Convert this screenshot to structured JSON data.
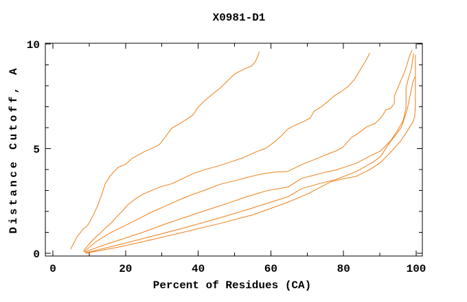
{
  "window": {
    "title": "X0981-D1"
  },
  "colors": {
    "background": "#ffffff",
    "axis": "#000000",
    "text": "#000000",
    "curve": "#ed7d14"
  },
  "chart_data": {
    "type": "line",
    "title": "X0981-D1",
    "xlabel": "Percent of Residues (CA)",
    "ylabel": "Distance Cutoff, A",
    "xlim": [
      0,
      100
    ],
    "ylim": [
      0,
      10
    ],
    "x_major_ticks": [
      0,
      20,
      40,
      60,
      80,
      100
    ],
    "x_minor_ticks": [
      10,
      30,
      50,
      70,
      90
    ],
    "y_major_ticks": [
      0,
      5,
      10
    ],
    "y_minor_ticks": [
      1,
      2,
      3,
      4,
      6,
      7,
      8,
      9
    ],
    "grid": false,
    "legend": "none",
    "line_color": "#ed7d14",
    "series": [
      {
        "name": "curve-1",
        "points": [
          [
            4.9,
            0.2
          ],
          [
            6.7,
            0.8
          ],
          [
            8.2,
            1.13
          ],
          [
            9.7,
            1.36
          ],
          [
            11,
            1.78
          ],
          [
            12.3,
            2.27
          ],
          [
            13.5,
            2.83
          ],
          [
            14.4,
            3.32
          ],
          [
            15.7,
            3.68
          ],
          [
            16.9,
            3.91
          ],
          [
            18,
            4.11
          ],
          [
            19.9,
            4.24
          ],
          [
            21.8,
            4.53
          ],
          [
            23.6,
            4.7
          ],
          [
            25.2,
            4.86
          ],
          [
            27.4,
            5.02
          ],
          [
            29.3,
            5.19
          ],
          [
            30.8,
            5.52
          ],
          [
            32.7,
            5.97
          ],
          [
            35,
            6.2
          ],
          [
            36.8,
            6.4
          ],
          [
            38.5,
            6.6
          ],
          [
            39.9,
            6.96
          ],
          [
            41.7,
            7.28
          ],
          [
            44,
            7.61
          ],
          [
            45.9,
            7.87
          ],
          [
            48.2,
            8.26
          ],
          [
            50,
            8.56
          ],
          [
            52.5,
            8.79
          ],
          [
            54.7,
            8.95
          ],
          [
            55.7,
            9.15
          ],
          [
            56.4,
            9.41
          ],
          [
            56.8,
            9.64
          ]
        ]
      },
      {
        "name": "curve-2",
        "points": [
          [
            8.4,
            0.11
          ],
          [
            11,
            0.64
          ],
          [
            13.1,
            0.97
          ],
          [
            14.4,
            1.19
          ],
          [
            16.1,
            1.46
          ],
          [
            17.6,
            1.75
          ],
          [
            19.1,
            2.01
          ],
          [
            20.6,
            2.31
          ],
          [
            22.5,
            2.57
          ],
          [
            24.6,
            2.8
          ],
          [
            27,
            2.99
          ],
          [
            29.9,
            3.19
          ],
          [
            32.7,
            3.32
          ],
          [
            35.5,
            3.55
          ],
          [
            38.7,
            3.81
          ],
          [
            42.1,
            4.01
          ],
          [
            45.5,
            4.17
          ],
          [
            49.1,
            4.37
          ],
          [
            52.5,
            4.57
          ],
          [
            55.7,
            4.83
          ],
          [
            58.7,
            5.02
          ],
          [
            61,
            5.32
          ],
          [
            62.9,
            5.61
          ],
          [
            64.7,
            5.94
          ],
          [
            67,
            6.14
          ],
          [
            69.1,
            6.3
          ],
          [
            70.8,
            6.46
          ],
          [
            71.9,
            6.79
          ],
          [
            73.8,
            6.99
          ],
          [
            75.7,
            7.25
          ],
          [
            77.4,
            7.51
          ],
          [
            79.5,
            7.74
          ],
          [
            81.3,
            7.97
          ],
          [
            83,
            8.3
          ],
          [
            84,
            8.59
          ],
          [
            85.5,
            9.02
          ],
          [
            86.6,
            9.34
          ],
          [
            87.2,
            9.57
          ]
        ]
      },
      {
        "name": "curve-3",
        "points": [
          [
            8.6,
            0.08
          ],
          [
            12,
            0.57
          ],
          [
            15.7,
            0.97
          ],
          [
            19.5,
            1.29
          ],
          [
            23.3,
            1.62
          ],
          [
            27,
            1.95
          ],
          [
            30.8,
            2.24
          ],
          [
            34.6,
            2.54
          ],
          [
            38.3,
            2.8
          ],
          [
            42.1,
            3.03
          ],
          [
            45.9,
            3.29
          ],
          [
            49.7,
            3.45
          ],
          [
            53.4,
            3.62
          ],
          [
            57.2,
            3.78
          ],
          [
            61,
            3.88
          ],
          [
            64.7,
            3.91
          ],
          [
            68.5,
            4.24
          ],
          [
            72.3,
            4.5
          ],
          [
            75.1,
            4.7
          ],
          [
            77.9,
            4.89
          ],
          [
            79.8,
            5.06
          ],
          [
            82.3,
            5.55
          ],
          [
            83.6,
            5.68
          ],
          [
            86.4,
            6.04
          ],
          [
            88.7,
            6.2
          ],
          [
            90.6,
            6.53
          ],
          [
            91.7,
            6.86
          ],
          [
            93,
            6.92
          ],
          [
            94,
            7.18
          ],
          [
            94,
            7.51
          ],
          [
            95.8,
            8.26
          ],
          [
            96.8,
            8.66
          ],
          [
            97.4,
            8.98
          ],
          [
            98.1,
            9.38
          ],
          [
            98.9,
            9.71
          ]
        ]
      },
      {
        "name": "curve-4",
        "points": [
          [
            8.6,
            0.05
          ],
          [
            13.8,
            0.38
          ],
          [
            19.5,
            0.7
          ],
          [
            25.2,
            1.03
          ],
          [
            30.8,
            1.39
          ],
          [
            36.5,
            1.72
          ],
          [
            42.1,
            2.05
          ],
          [
            47.8,
            2.37
          ],
          [
            53.4,
            2.7
          ],
          [
            59.1,
            3
          ],
          [
            64.7,
            3.16
          ],
          [
            68.5,
            3.58
          ],
          [
            72.3,
            3.75
          ],
          [
            75.1,
            3.88
          ],
          [
            77.9,
            3.98
          ],
          [
            80.8,
            4.14
          ],
          [
            83.6,
            4.3
          ],
          [
            87.4,
            4.66
          ],
          [
            90.2,
            4.89
          ],
          [
            93,
            5.38
          ],
          [
            94.9,
            5.88
          ],
          [
            96.4,
            6.33
          ],
          [
            97.2,
            6.96
          ],
          [
            97.2,
            7.9
          ],
          [
            98.1,
            8.49
          ],
          [
            98.7,
            8.82
          ],
          [
            99.1,
            9.31
          ],
          [
            99.3,
            9.54
          ]
        ]
      },
      {
        "name": "curve-5",
        "points": [
          [
            8.9,
            0.02
          ],
          [
            17.6,
            0.38
          ],
          [
            27,
            0.8
          ],
          [
            36.5,
            1.23
          ],
          [
            45.9,
            1.69
          ],
          [
            55.3,
            2.18
          ],
          [
            64.7,
            2.7
          ],
          [
            68.5,
            3.09
          ],
          [
            73.2,
            3.32
          ],
          [
            77.9,
            3.52
          ],
          [
            83.6,
            3.91
          ],
          [
            88.3,
            4.37
          ],
          [
            90.2,
            4.63
          ],
          [
            92.7,
            5.29
          ],
          [
            94.5,
            5.68
          ],
          [
            96,
            6.04
          ],
          [
            97.5,
            6.86
          ],
          [
            98.3,
            7.51
          ],
          [
            99.1,
            8.17
          ],
          [
            99.6,
            8.43
          ]
        ]
      },
      {
        "name": "curve-6",
        "points": [
          [
            9.1,
            0
          ],
          [
            17.6,
            0.28
          ],
          [
            27,
            0.64
          ],
          [
            36.5,
            1.03
          ],
          [
            45.9,
            1.42
          ],
          [
            55.3,
            1.85
          ],
          [
            64.7,
            2.44
          ],
          [
            70.4,
            2.86
          ],
          [
            76.6,
            3.42
          ],
          [
            79.8,
            3.55
          ],
          [
            83.6,
            3.68
          ],
          [
            87.4,
            4.01
          ],
          [
            90.2,
            4.34
          ],
          [
            93,
            4.83
          ],
          [
            95.8,
            5.38
          ],
          [
            97.7,
            5.88
          ],
          [
            99.1,
            6.27
          ],
          [
            99.6,
            6.53
          ],
          [
            99.8,
            7.18
          ],
          [
            99.8,
            8.17
          ],
          [
            99.8,
            9.48
          ]
        ]
      }
    ]
  }
}
